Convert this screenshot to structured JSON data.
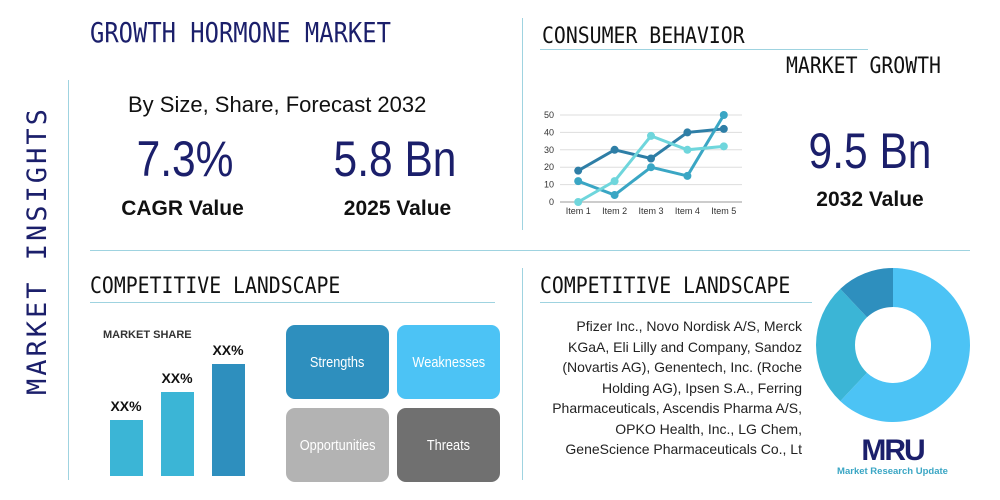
{
  "side_title": "MARKET INSIGHTS",
  "header": {
    "title": "GROWTH HORMONE MARKET",
    "subtitle": "By Size, Share, Forecast 2032"
  },
  "stats": [
    {
      "value": "7.3%",
      "label": "CAGR Value"
    },
    {
      "value": "5.8 Bn",
      "label": "2025 Value"
    },
    {
      "value": "9.5 Bn",
      "label": "2032 Value"
    }
  ],
  "consumer": {
    "title": "CONSUMER BEHAVIOR",
    "subtitle": "MARKET GROWTH"
  },
  "chart_data": {
    "type": "line",
    "categories": [
      "Item 1",
      "Item 2",
      "Item 3",
      "Item 4",
      "Item 5"
    ],
    "yticks": [
      "0",
      "10",
      "20",
      "30",
      "40",
      "50"
    ],
    "ylim": [
      0,
      50
    ],
    "grid": true,
    "series": [
      {
        "color": "#2e7ea6",
        "values": [
          18,
          30,
          25,
          40,
          42
        ]
      },
      {
        "color": "#3aa6c4",
        "values": [
          12,
          4,
          20,
          15,
          50
        ]
      },
      {
        "color": "#6fd6dc",
        "values": [
          0,
          12,
          38,
          30,
          32
        ]
      }
    ]
  },
  "competitive_left": {
    "title": "COMPETITIVE LANDSCAPE",
    "market_share_label": "MARKET SHARE",
    "bars": [
      {
        "label": "XX%",
        "color": "#3bb5d6"
      },
      {
        "label": "XX%",
        "color": "#3bb5d6"
      },
      {
        "label": "XX%",
        "color": "#2e8fbe"
      }
    ],
    "swot": [
      {
        "label": "Strengths",
        "color": "#2e8fbe"
      },
      {
        "label": "Weaknesses",
        "color": "#4cc3f5"
      },
      {
        "label": "Opportunities",
        "color": "#b3b3b3"
      },
      {
        "label": "Threats",
        "color": "#707070"
      }
    ]
  },
  "competitive_right": {
    "title": "COMPETITIVE LANDSCAPE",
    "companies": "Pfizer Inc., Novo Nordisk A/S, Merck KGaA, Eli Lilly and Company, Sandoz (Novartis AG), Genentech, Inc. (Roche Holding AG), Ipsen S.A., Ferring Pharmaceuticals, Ascendis Pharma A/S, OPKO Health, Inc., LG Chem, GeneScience Pharmaceuticals Co., Lt"
  },
  "donut": {
    "slices": [
      {
        "value": 62,
        "color": "#4cc3f5"
      },
      {
        "value": 26,
        "color": "#3bb5d6"
      },
      {
        "value": 12,
        "color": "#2e8fbe"
      }
    ]
  },
  "logo": {
    "mark": "MRU",
    "name": "Market Research Update"
  }
}
